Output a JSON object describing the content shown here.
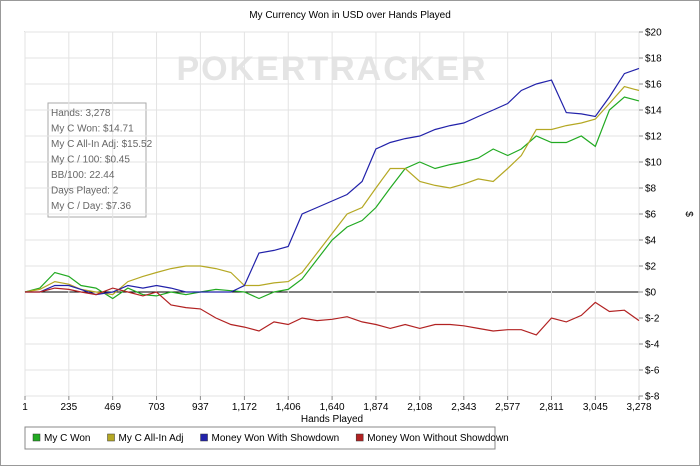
{
  "chart_data": {
    "type": "line",
    "title": "My Currency Won in USD over Hands Played",
    "watermark": "POKERTRACKER",
    "x_label": "Hands Played",
    "y_label": "$",
    "annotations": [
      "Hands: 3,278",
      "My C Won: $14.71",
      "My C All-In Adj: $15.52",
      "My C / 100: $0.45",
      "BB/100: 22.44",
      "Days Played: 2",
      "My C / Day: $7.36"
    ],
    "x": [
      1,
      80,
      160,
      235,
      300,
      380,
      469,
      550,
      630,
      703,
      780,
      860,
      937,
      1020,
      1100,
      1172,
      1250,
      1330,
      1406,
      1480,
      1560,
      1640,
      1720,
      1800,
      1874,
      1950,
      2030,
      2108,
      2190,
      2270,
      2343,
      2420,
      2500,
      2577,
      2650,
      2730,
      2811,
      2890,
      2970,
      3045,
      3120,
      3200,
      3278
    ],
    "series": [
      {
        "name": "My C Won",
        "color": "#22aa22",
        "values": [
          0,
          0.3,
          1.5,
          1.2,
          0.5,
          0.3,
          -0.5,
          0.3,
          -0.2,
          -0.3,
          0,
          -0.2,
          0,
          0.2,
          0.1,
          0,
          -0.5,
          0,
          0.2,
          1,
          2.5,
          4,
          5,
          5.5,
          6.5,
          8,
          9.5,
          10,
          9.5,
          9.8,
          10,
          10.3,
          11,
          10.5,
          11,
          12,
          11.5,
          11.5,
          12,
          11.2,
          14,
          15,
          14.7
        ]
      },
      {
        "name": "My C All-In Adj",
        "color": "#b5a824",
        "values": [
          0,
          0.2,
          0.8,
          0.6,
          0.2,
          0,
          -0.2,
          0.8,
          1.2,
          1.5,
          1.8,
          2,
          2,
          1.8,
          1.5,
          0.5,
          0.5,
          0.7,
          0.8,
          1.5,
          3,
          4.5,
          6,
          6.5,
          8,
          9.5,
          9.5,
          8.5,
          8.2,
          8,
          8.3,
          8.7,
          8.5,
          9.5,
          10.5,
          12.5,
          12.5,
          12.8,
          13,
          13.3,
          14.5,
          15.8,
          15.5
        ]
      },
      {
        "name": "Money Won With Showdown",
        "color": "#2222aa",
        "values": [
          0,
          0,
          0.5,
          0.5,
          0.2,
          -0.2,
          0,
          0.5,
          0.3,
          0.5,
          0.3,
          0,
          0,
          0,
          0,
          0.5,
          3,
          3.2,
          3.5,
          6,
          6.5,
          7,
          7.5,
          8.5,
          11,
          11.5,
          11.8,
          12,
          12.5,
          12.8,
          13,
          13.5,
          14,
          14.5,
          15.5,
          16,
          16.3,
          13.8,
          13.7,
          13.5,
          15,
          16.8,
          17.2
        ]
      },
      {
        "name": "Money Won Without Showdown",
        "color": "#b22222",
        "values": [
          0,
          0,
          0.3,
          0.2,
          0,
          -0.2,
          0.3,
          0,
          -0.3,
          0,
          -1,
          -1.2,
          -1.3,
          -2,
          -2.5,
          -2.7,
          -3,
          -2.3,
          -2.5,
          -2,
          -2.2,
          -2.1,
          -1.9,
          -2.3,
          -2.5,
          -2.8,
          -2.5,
          -2.8,
          -2.5,
          -2.5,
          -2.6,
          -2.8,
          -3,
          -2.9,
          -2.9,
          -3.3,
          -2,
          -2.3,
          -1.8,
          -0.8,
          -1.5,
          -1.4,
          -2.2
        ]
      }
    ],
    "xlim": [
      1,
      3278
    ],
    "xticks": [
      1,
      235,
      469,
      703,
      937,
      {
        "value": 1172,
        "label": "1,172"
      },
      {
        "value": 1406,
        "label": "1,406"
      },
      {
        "value": 1640,
        "label": "1,640"
      },
      {
        "value": 1874,
        "label": "1,874"
      },
      {
        "value": 2108,
        "label": "2,108"
      },
      {
        "value": 2343,
        "label": "2,343"
      },
      {
        "value": 2577,
        "label": "2,577"
      },
      {
        "value": 2811,
        "label": "2,811"
      },
      {
        "value": 3045,
        "label": "3,045"
      },
      {
        "value": 3278,
        "label": "3,278"
      }
    ],
    "ylim": [
      -8,
      20
    ],
    "yticks": [
      {
        "value": -8,
        "label": "$-8"
      },
      {
        "value": -6,
        "label": "$-6"
      },
      {
        "value": -4,
        "label": "$-4"
      },
      {
        "value": -2,
        "label": "$-2"
      },
      {
        "value": 0,
        "label": "$0"
      },
      {
        "value": 2,
        "label": "$2"
      },
      {
        "value": 4,
        "label": "$4"
      },
      {
        "value": 6,
        "label": "$6"
      },
      {
        "value": 8,
        "label": "$8"
      },
      {
        "value": 10,
        "label": "$10"
      },
      {
        "value": 12,
        "label": "$12"
      },
      {
        "value": 14,
        "label": "$14"
      },
      {
        "value": 16,
        "label": "$16"
      },
      {
        "value": 18,
        "label": "$18"
      },
      {
        "value": 20,
        "label": "$20"
      }
    ],
    "grid": true,
    "legend": "bottom"
  }
}
